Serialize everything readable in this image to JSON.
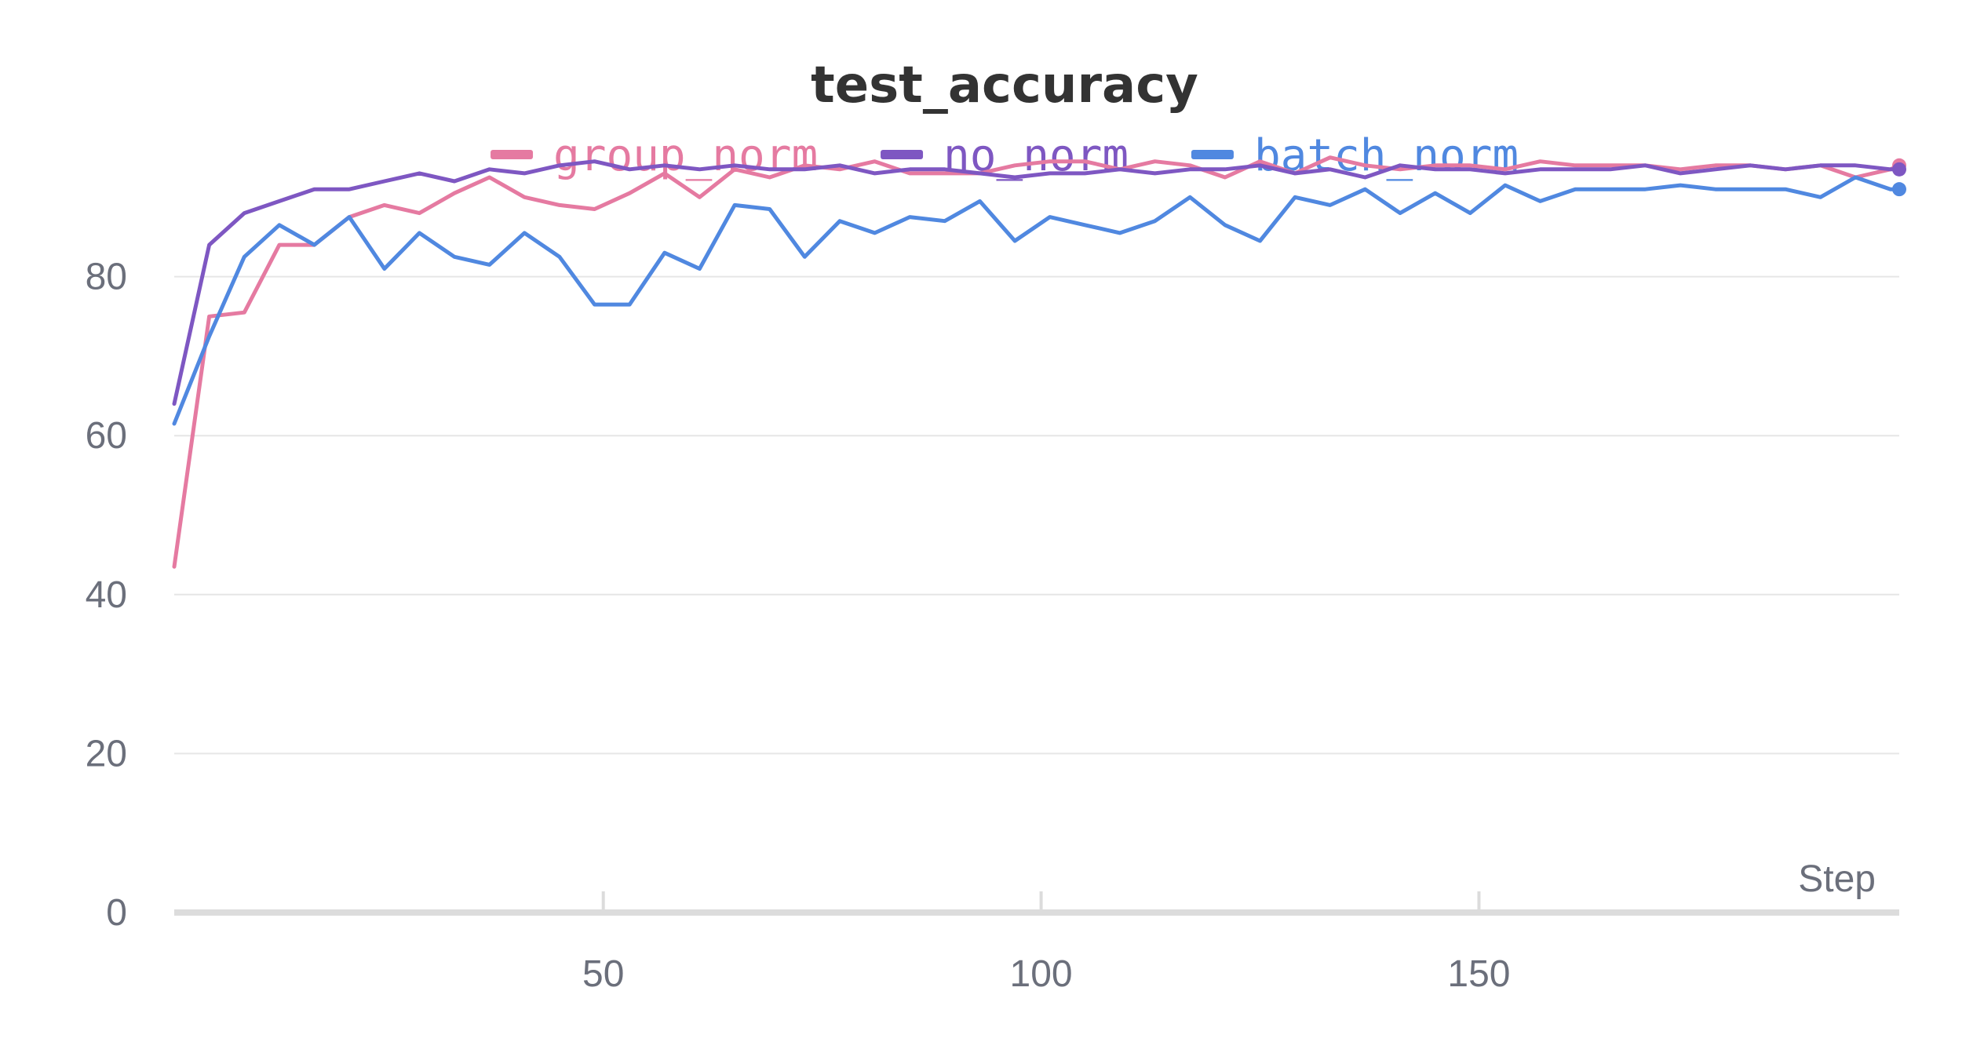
{
  "chart_data": {
    "type": "line",
    "title": "test_accuracy",
    "xlabel": "Step",
    "ylabel": "",
    "xlim": [
      1,
      198
    ],
    "ylim": [
      0,
      100
    ],
    "x_ticks": [
      "50",
      "100",
      "150"
    ],
    "y_ticks": [
      "0",
      "20",
      "40",
      "60",
      "80"
    ],
    "x": [
      1,
      5,
      9,
      13,
      17,
      21,
      25,
      29,
      33,
      37,
      41,
      45,
      49,
      53,
      57,
      61,
      65,
      69,
      73,
      77,
      81,
      85,
      89,
      93,
      97,
      101,
      105,
      109,
      113,
      117,
      121,
      125,
      129,
      133,
      137,
      141,
      145,
      149,
      153,
      157,
      161,
      165,
      169,
      173,
      177,
      181,
      185,
      189,
      193,
      197,
      198
    ],
    "series": [
      {
        "name": "group_norm",
        "color": "#e57aa1",
        "values": [
          43.5,
          75,
          75.5,
          84,
          84,
          87.5,
          89,
          88,
          90.5,
          92.5,
          90,
          89,
          88.5,
          90.5,
          93,
          90,
          93.5,
          92.5,
          94,
          93.5,
          94.5,
          93,
          93,
          93,
          94,
          94.5,
          94.5,
          93.5,
          94.5,
          94,
          92.5,
          94.5,
          93,
          95,
          94,
          93.5,
          94,
          94,
          93.5,
          94.5,
          94,
          94,
          94,
          93.5,
          94,
          94,
          93.5,
          94,
          92.5,
          93.5,
          94
        ]
      },
      {
        "name": "no_norm",
        "color": "#7e57c2",
        "values": [
          64,
          84,
          88,
          89.5,
          91,
          91,
          92,
          93,
          92,
          93.5,
          93,
          94,
          94.5,
          93.5,
          94,
          93.5,
          94,
          93.5,
          93.5,
          94,
          93,
          93.5,
          93.5,
          93,
          92.5,
          93,
          93,
          93.5,
          93,
          93.5,
          93.5,
          94,
          93,
          93.5,
          92.5,
          94,
          93.5,
          93.5,
          93,
          93.5,
          93.5,
          93.5,
          94,
          93,
          93.5,
          94,
          93.5,
          94,
          94,
          93.5,
          93.5
        ]
      },
      {
        "name": "batch_norm",
        "color": "#5088e0",
        "values": [
          61.5,
          72.5,
          82.5,
          86.5,
          84,
          87.5,
          81,
          85.5,
          82.5,
          81.5,
          85.5,
          82.5,
          76.5,
          76.5,
          83,
          81,
          89,
          88.5,
          82.5,
          87,
          85.5,
          87.5,
          87,
          89.5,
          84.5,
          87.5,
          86.5,
          85.5,
          87,
          90,
          86.5,
          84.5,
          90,
          89,
          91,
          88,
          90.5,
          88,
          91.5,
          89.5,
          91,
          91,
          91,
          91.5,
          91,
          91,
          91,
          90,
          92.5,
          91,
          91
        ]
      }
    ],
    "legend_position": "top-center",
    "grid": true
  }
}
